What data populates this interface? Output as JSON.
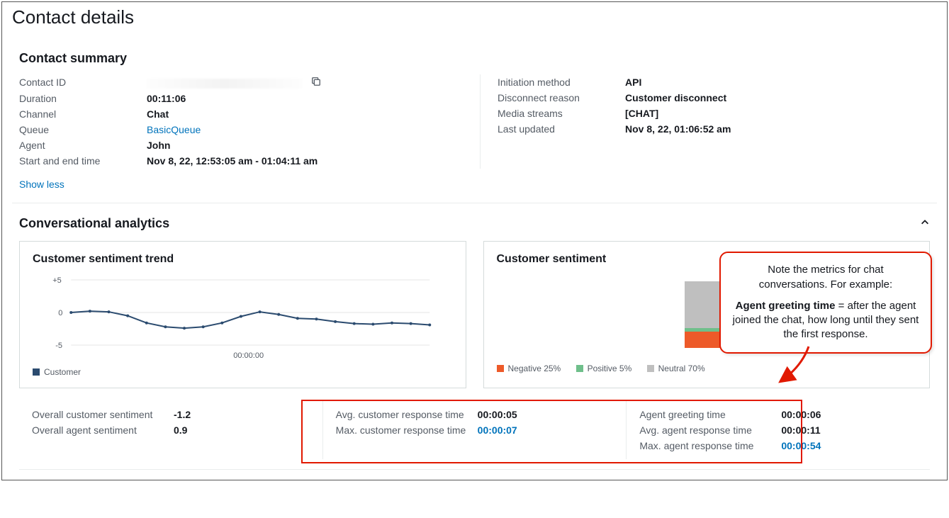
{
  "page": {
    "title": "Contact details"
  },
  "summary": {
    "heading": "Contact summary",
    "left": {
      "contact_id_label": "Contact ID",
      "contact_id_value": "",
      "duration_label": "Duration",
      "duration_value": "00:11:06",
      "channel_label": "Channel",
      "channel_value": "Chat",
      "queue_label": "Queue",
      "queue_value": "BasicQueue",
      "agent_label": "Agent",
      "agent_value": "John",
      "start_end_label": "Start and end time",
      "start_end_value": "Nov 8, 22, 12:53:05 am - 01:04:11 am"
    },
    "right": {
      "initiation_label": "Initiation method",
      "initiation_value": "API",
      "disconnect_label": "Disconnect reason",
      "disconnect_value": "Customer disconnect",
      "media_label": "Media streams",
      "media_value": "[CHAT]",
      "updated_label": "Last updated",
      "updated_value": "Nov 8, 22, 01:06:52 am"
    },
    "show_less": "Show less"
  },
  "analytics": {
    "heading": "Conversational analytics",
    "trend": {
      "title": "Customer sentiment trend",
      "y_max_label": "+5",
      "y_zero_label": "0",
      "y_min_label": "-5",
      "x_tick_label": "00:00:00",
      "series_color": "#2b4b6f",
      "ylim": [
        -5,
        5
      ],
      "points": [
        0,
        0.2,
        0.1,
        -0.5,
        -1.6,
        -2.2,
        -2.4,
        -2.2,
        -1.6,
        -0.6,
        0.1,
        -0.3,
        -0.9,
        -1.0,
        -1.4,
        -1.7,
        -1.8,
        -1.6,
        -1.7,
        -1.9
      ],
      "legend_label": "Customer"
    },
    "sentiment": {
      "title": "Customer sentiment",
      "segments": [
        {
          "label": "Negative",
          "pct": 25,
          "color": "#ed5a29"
        },
        {
          "label": "Positive",
          "pct": 5,
          "color": "#6fbf8b"
        },
        {
          "label": "Neutral",
          "pct": 70,
          "color": "#bfbfbf"
        }
      ],
      "legend_negative": "Negative 25%",
      "legend_positive": "Positive 5%",
      "legend_neutral": "Neutral 70%"
    },
    "metrics": {
      "overall_cust_label": "Overall customer sentiment",
      "overall_cust_value": "-1.2",
      "overall_agent_label": "Overall agent sentiment",
      "overall_agent_value": "0.9",
      "avg_cust_rt_label": "Avg. customer response time",
      "avg_cust_rt_value": "00:00:05",
      "max_cust_rt_label": "Max. customer response time",
      "max_cust_rt_value": "00:00:07",
      "agent_greet_label": "Agent greeting time",
      "agent_greet_value": "00:00:06",
      "avg_agent_rt_label": "Avg. agent response time",
      "avg_agent_rt_value": "00:00:11",
      "max_agent_rt_label": "Max. agent response time",
      "max_agent_rt_value": "00:00:54"
    }
  },
  "callout": {
    "line1": "Note the metrics for chat conversations. For example:",
    "bold": "Agent greeting time",
    "rest": " = after the agent joined the chat, how long until they sent the first response.",
    "border_color": "#e11900"
  }
}
